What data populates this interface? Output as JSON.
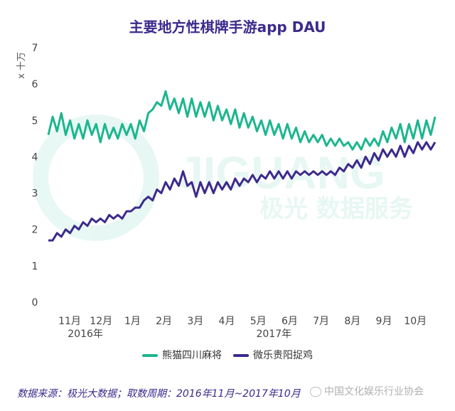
{
  "chart_data": {
    "type": "line",
    "title": "主要地方性棋牌手游app DAU",
    "ylabel": "x 十万",
    "ylim": [
      0,
      7
    ],
    "yticks": [
      "0",
      "1",
      "2",
      "3",
      "4",
      "5",
      "6",
      "7"
    ],
    "xticks": [
      "11月",
      "12月",
      "1月",
      "2月",
      "3月",
      "4月",
      "5月",
      "6月",
      "7月",
      "8月",
      "9月",
      "10月"
    ],
    "year_labels": [
      "2016年",
      "2017年"
    ],
    "grid": false,
    "legend_position": "bottom",
    "series": [
      {
        "name": "熊猫四川麻将",
        "color": "#1db68f",
        "values": [
          4.6,
          5.1,
          4.7,
          5.2,
          4.6,
          5.0,
          4.5,
          4.9,
          4.5,
          5.0,
          4.6,
          4.9,
          4.4,
          4.9,
          4.5,
          4.8,
          4.5,
          4.9,
          4.6,
          4.9,
          4.5,
          5.0,
          4.7,
          5.2,
          5.3,
          5.5,
          5.4,
          5.8,
          5.3,
          5.6,
          5.2,
          5.6,
          5.1,
          5.6,
          5.1,
          5.5,
          5.1,
          5.5,
          5.0,
          5.4,
          5.0,
          5.3,
          4.9,
          5.3,
          4.8,
          5.2,
          4.8,
          5.1,
          4.7,
          5.0,
          4.6,
          5.0,
          4.6,
          4.9,
          4.5,
          4.9,
          4.5,
          4.8,
          4.4,
          4.7,
          4.4,
          4.6,
          4.4,
          4.6,
          4.3,
          4.5,
          4.3,
          4.5,
          4.3,
          4.4,
          4.2,
          4.4,
          4.2,
          4.5,
          4.3,
          4.5,
          4.3,
          4.7,
          4.4,
          4.8,
          4.5,
          4.9,
          4.4,
          4.9,
          4.5,
          5.0,
          4.5,
          5.0,
          4.6,
          5.1
        ]
      },
      {
        "name": "微乐贵阳捉鸡",
        "color": "#3d2a8c",
        "values": [
          1.7,
          1.7,
          1.9,
          1.8,
          2.0,
          1.9,
          2.1,
          2.0,
          2.2,
          2.1,
          2.3,
          2.2,
          2.3,
          2.2,
          2.4,
          2.3,
          2.4,
          2.3,
          2.5,
          2.5,
          2.6,
          2.6,
          2.8,
          2.9,
          2.8,
          3.1,
          3.0,
          3.3,
          3.1,
          3.4,
          3.2,
          3.6,
          3.2,
          3.3,
          2.9,
          3.3,
          3.0,
          3.3,
          3.0,
          3.3,
          3.1,
          3.3,
          3.1,
          3.4,
          3.2,
          3.4,
          3.3,
          3.5,
          3.3,
          3.5,
          3.4,
          3.6,
          3.4,
          3.6,
          3.4,
          3.6,
          3.4,
          3.6,
          3.5,
          3.6,
          3.5,
          3.6,
          3.5,
          3.6,
          3.5,
          3.6,
          3.5,
          3.7,
          3.6,
          3.8,
          3.7,
          3.9,
          3.7,
          4.0,
          3.8,
          4.1,
          3.9,
          4.2,
          4.0,
          4.2,
          4.0,
          4.3,
          4.0,
          4.3,
          4.1,
          4.4,
          4.2,
          4.4,
          4.2,
          4.4
        ]
      }
    ]
  },
  "watermark": {
    "brand": "JIGUANG",
    "sub": "极光 数据服务"
  },
  "source": "数据来源：极光大数据；取数周期：2016年11月~2017年10月",
  "footer_logo": "中国文化娱乐行业协会"
}
